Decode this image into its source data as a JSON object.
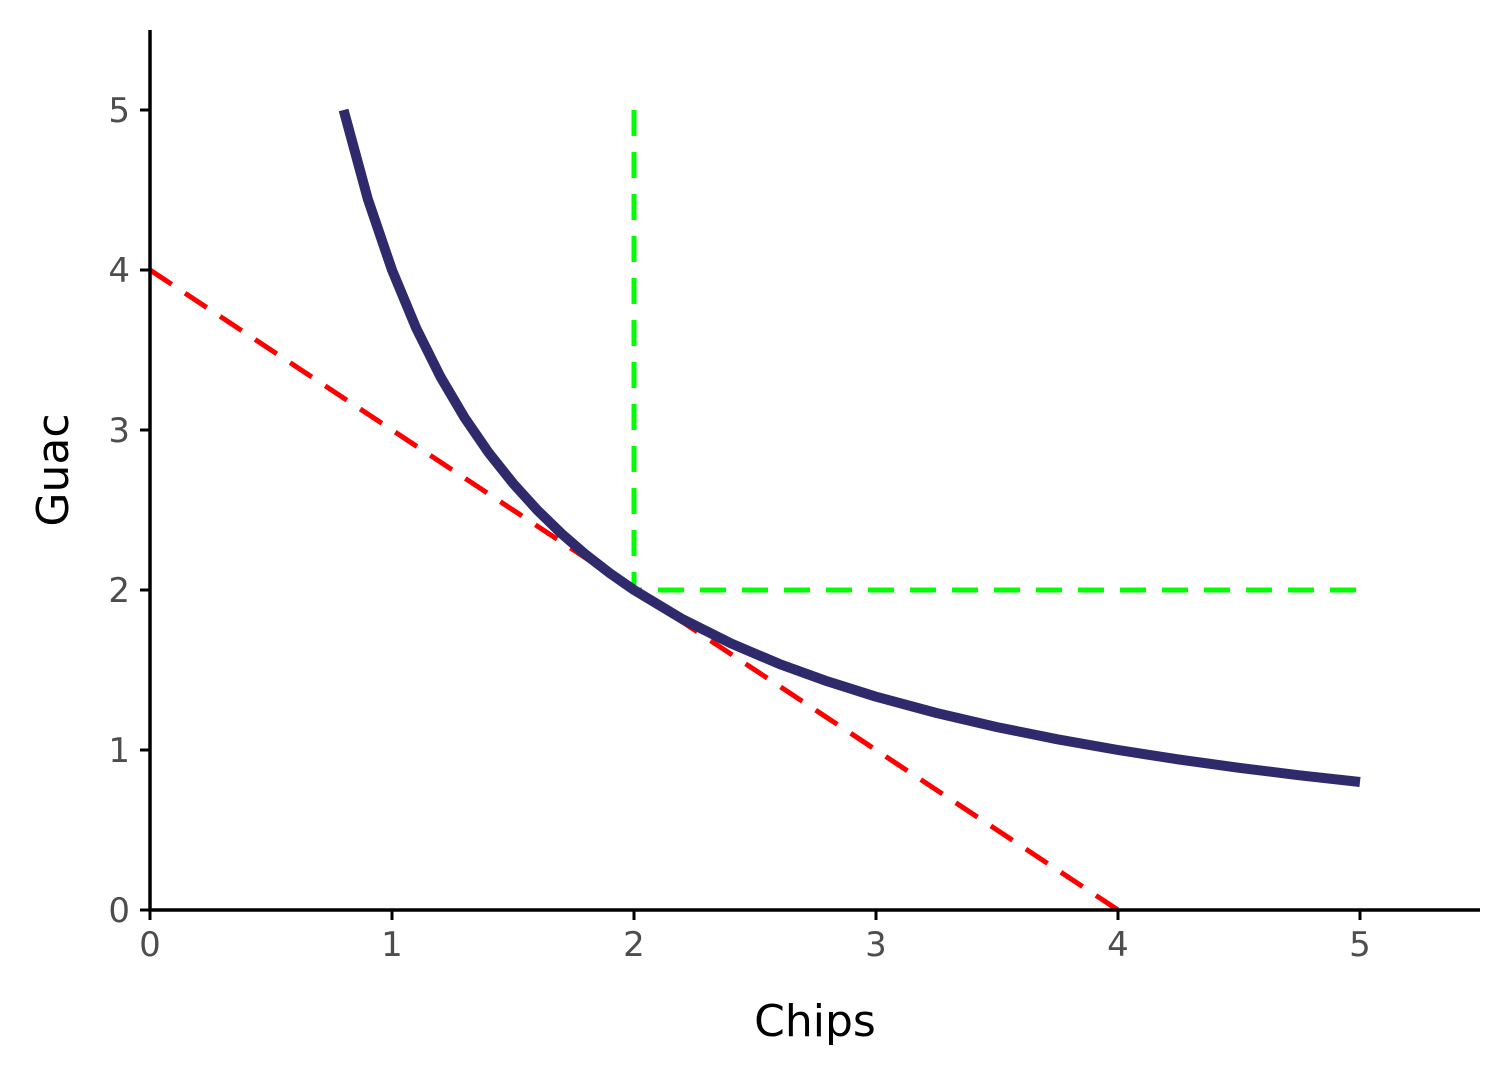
{
  "chart_data": {
    "type": "line",
    "xlabel": "Chips",
    "ylabel": "Guac",
    "xlim": [
      0,
      5.5
    ],
    "ylim": [
      0,
      5.5
    ],
    "x_ticks": [
      "0",
      "1",
      "2",
      "3",
      "4",
      "5"
    ],
    "y_ticks": [
      "0",
      "1",
      "2",
      "3",
      "4",
      "5"
    ],
    "grid": false,
    "legend": "none",
    "series": [
      {
        "style": "solid",
        "color": "#2e2a6b",
        "x": [
          0.8,
          0.9,
          1.0,
          1.1,
          1.2,
          1.3,
          1.4,
          1.5,
          1.6,
          1.7,
          1.8,
          1.9,
          2.0,
          2.2,
          2.4,
          2.6,
          2.8,
          3.0,
          3.25,
          3.5,
          3.75,
          4.0,
          4.25,
          4.5,
          4.75,
          5.0
        ],
        "y": [
          5.0,
          4.444,
          4.0,
          3.636,
          3.333,
          3.077,
          2.857,
          2.667,
          2.5,
          2.353,
          2.222,
          2.105,
          2.0,
          1.818,
          1.667,
          1.538,
          1.429,
          1.333,
          1.231,
          1.143,
          1.067,
          1.0,
          0.941,
          0.889,
          0.842,
          0.8
        ]
      },
      {
        "style": "dashed",
        "color": "#ff0000",
        "x": [
          0,
          4
        ],
        "y": [
          4,
          0
        ]
      },
      {
        "style": "dashed",
        "color": "#00ff00",
        "x": [
          2,
          2,
          5
        ],
        "y": [
          5,
          2,
          2
        ]
      }
    ]
  }
}
